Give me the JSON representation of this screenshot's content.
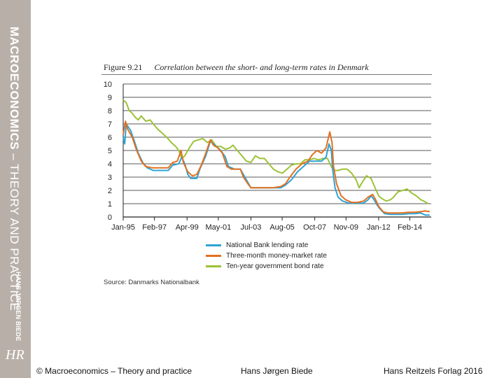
{
  "sidebar": {
    "title_bold": "MACROECONOMICS",
    "title_rest": " – THEORY AND PRACTICE",
    "author": "HANS JØRGEN BIEDE",
    "logo": "HR"
  },
  "figure": {
    "number": "Figure 9.21",
    "caption": "Correlation between the short- and long-term rates in Denmark",
    "source": "Source: Danmarks Nationalbank"
  },
  "footer": {
    "left": "© Macroeconomics – Theory and practice",
    "center": "Hans Jørgen Biede",
    "right": "Hans Reitzels Forlag 2016"
  },
  "chart_data": {
    "type": "line",
    "ylim": [
      0,
      10
    ],
    "yticks": [
      "0",
      "1",
      "2",
      "3",
      "4",
      "5",
      "6",
      "7",
      "8",
      "9",
      "10"
    ],
    "xlim": [
      1995.0,
      2015.5
    ],
    "xticks": [
      {
        "label": "Jan-95",
        "x": 1995.0
      },
      {
        "label": "Feb-97",
        "x": 1997.08
      },
      {
        "label": "Apr-99",
        "x": 1999.25
      },
      {
        "label": "May-01",
        "x": 2001.33
      },
      {
        "label": "Jul-03",
        "x": 2003.5
      },
      {
        "label": "Aug-05",
        "x": 2005.58
      },
      {
        "label": "Oct-07",
        "x": 2007.75
      },
      {
        "label": "Nov-09",
        "x": 2009.83
      },
      {
        "label": "Jan-12",
        "x": 2012.0
      },
      {
        "label": "Feb-14",
        "x": 2014.08
      }
    ],
    "grid": true,
    "legend_position": "bottom",
    "series": [
      {
        "name": "National Bank lending rate",
        "color": "#2ea3d4",
        "points": [
          [
            1995.0,
            6.0
          ],
          [
            1995.1,
            5.5
          ],
          [
            1995.2,
            7.0
          ],
          [
            1995.5,
            6.5
          ],
          [
            1995.8,
            5.5
          ],
          [
            1996.0,
            4.8
          ],
          [
            1996.3,
            4.1
          ],
          [
            1996.6,
            3.7
          ],
          [
            1997.0,
            3.5
          ],
          [
            1997.5,
            3.5
          ],
          [
            1998.0,
            3.5
          ],
          [
            1998.3,
            3.9
          ],
          [
            1998.7,
            4.0
          ],
          [
            1998.9,
            4.5
          ],
          [
            1999.1,
            4.0
          ],
          [
            1999.3,
            3.2
          ],
          [
            1999.5,
            2.9
          ],
          [
            1999.9,
            2.9
          ],
          [
            2000.1,
            3.6
          ],
          [
            2000.5,
            4.6
          ],
          [
            2000.8,
            5.7
          ],
          [
            2001.0,
            5.5
          ],
          [
            2001.5,
            5.0
          ],
          [
            2001.8,
            4.5
          ],
          [
            2002.0,
            3.8
          ],
          [
            2002.4,
            3.6
          ],
          [
            2002.8,
            3.6
          ],
          [
            2003.0,
            3.2
          ],
          [
            2003.3,
            2.6
          ],
          [
            2003.5,
            2.2
          ],
          [
            2004.0,
            2.2
          ],
          [
            2004.5,
            2.2
          ],
          [
            2005.0,
            2.2
          ],
          [
            2005.5,
            2.2
          ],
          [
            2005.8,
            2.4
          ],
          [
            2006.2,
            2.8
          ],
          [
            2006.6,
            3.4
          ],
          [
            2007.0,
            3.8
          ],
          [
            2007.4,
            4.2
          ],
          [
            2007.8,
            4.2
          ],
          [
            2008.2,
            4.2
          ],
          [
            2008.5,
            4.5
          ],
          [
            2008.7,
            5.5
          ],
          [
            2008.85,
            5.0
          ],
          [
            2008.95,
            3.5
          ],
          [
            2009.1,
            2.2
          ],
          [
            2009.3,
            1.5
          ],
          [
            2009.6,
            1.2
          ],
          [
            2010.0,
            1.05
          ],
          [
            2010.5,
            1.05
          ],
          [
            2011.0,
            1.05
          ],
          [
            2011.3,
            1.3
          ],
          [
            2011.5,
            1.6
          ],
          [
            2011.7,
            1.3
          ],
          [
            2011.9,
            0.9
          ],
          [
            2012.1,
            0.6
          ],
          [
            2012.4,
            0.25
          ],
          [
            2012.8,
            0.2
          ],
          [
            2013.2,
            0.2
          ],
          [
            2013.6,
            0.2
          ],
          [
            2014.0,
            0.25
          ],
          [
            2014.4,
            0.25
          ],
          [
            2014.8,
            0.3
          ],
          [
            2015.1,
            0.15
          ],
          [
            2015.4,
            0.15
          ]
        ]
      },
      {
        "name": "Three-month money-market rate",
        "color": "#e3701f",
        "points": [
          [
            1995.0,
            6.2
          ],
          [
            1995.15,
            7.2
          ],
          [
            1995.3,
            6.6
          ],
          [
            1995.6,
            6.0
          ],
          [
            1995.9,
            5.0
          ],
          [
            1996.2,
            4.2
          ],
          [
            1996.5,
            3.8
          ],
          [
            1996.9,
            3.7
          ],
          [
            1997.3,
            3.7
          ],
          [
            1997.7,
            3.7
          ],
          [
            1998.0,
            3.7
          ],
          [
            1998.3,
            4.1
          ],
          [
            1998.6,
            4.2
          ],
          [
            1998.85,
            5.0
          ],
          [
            1999.0,
            4.1
          ],
          [
            1999.3,
            3.4
          ],
          [
            1999.6,
            3.1
          ],
          [
            1999.9,
            3.2
          ],
          [
            2000.2,
            3.9
          ],
          [
            2000.5,
            4.8
          ],
          [
            2000.8,
            5.8
          ],
          [
            2001.0,
            5.4
          ],
          [
            2001.3,
            5.2
          ],
          [
            2001.6,
            4.8
          ],
          [
            2001.9,
            3.8
          ],
          [
            2002.2,
            3.6
          ],
          [
            2002.5,
            3.6
          ],
          [
            2002.8,
            3.6
          ],
          [
            2003.0,
            3.0
          ],
          [
            2003.3,
            2.5
          ],
          [
            2003.5,
            2.2
          ],
          [
            2004.0,
            2.2
          ],
          [
            2004.5,
            2.2
          ],
          [
            2005.0,
            2.2
          ],
          [
            2005.5,
            2.3
          ],
          [
            2005.8,
            2.5
          ],
          [
            2006.1,
            3.0
          ],
          [
            2006.5,
            3.6
          ],
          [
            2006.9,
            4.0
          ],
          [
            2007.3,
            4.2
          ],
          [
            2007.6,
            4.7
          ],
          [
            2007.9,
            5.0
          ],
          [
            2008.2,
            4.8
          ],
          [
            2008.5,
            5.2
          ],
          [
            2008.75,
            6.4
          ],
          [
            2008.9,
            5.6
          ],
          [
            2009.0,
            3.8
          ],
          [
            2009.2,
            2.5
          ],
          [
            2009.5,
            1.6
          ],
          [
            2009.8,
            1.3
          ],
          [
            2010.2,
            1.1
          ],
          [
            2010.6,
            1.1
          ],
          [
            2011.0,
            1.2
          ],
          [
            2011.3,
            1.5
          ],
          [
            2011.6,
            1.7
          ],
          [
            2011.8,
            1.3
          ],
          [
            2012.0,
            0.8
          ],
          [
            2012.3,
            0.4
          ],
          [
            2012.6,
            0.3
          ],
          [
            2013.0,
            0.3
          ],
          [
            2013.5,
            0.3
          ],
          [
            2014.0,
            0.35
          ],
          [
            2014.4,
            0.35
          ],
          [
            2014.8,
            0.4
          ],
          [
            2015.1,
            0.45
          ],
          [
            2015.4,
            0.4
          ]
        ]
      },
      {
        "name": "Ten-year government bond rate",
        "color": "#9cc236",
        "points": [
          [
            1995.0,
            8.8
          ],
          [
            1995.2,
            8.6
          ],
          [
            1995.4,
            8.0
          ],
          [
            1995.6,
            7.8
          ],
          [
            1995.8,
            7.5
          ],
          [
            1996.0,
            7.3
          ],
          [
            1996.2,
            7.6
          ],
          [
            1996.5,
            7.2
          ],
          [
            1996.8,
            7.3
          ],
          [
            1997.0,
            7.0
          ],
          [
            1997.3,
            6.6
          ],
          [
            1997.6,
            6.3
          ],
          [
            1997.9,
            6.0
          ],
          [
            1998.2,
            5.6
          ],
          [
            1998.5,
            5.3
          ],
          [
            1998.7,
            5.0
          ],
          [
            1998.9,
            4.4
          ],
          [
            1999.1,
            4.6
          ],
          [
            1999.4,
            5.2
          ],
          [
            1999.7,
            5.7
          ],
          [
            2000.0,
            5.8
          ],
          [
            2000.3,
            5.9
          ],
          [
            2000.6,
            5.6
          ],
          [
            2000.9,
            5.8
          ],
          [
            2001.2,
            5.3
          ],
          [
            2001.5,
            5.3
          ],
          [
            2001.8,
            5.1
          ],
          [
            2002.1,
            5.2
          ],
          [
            2002.3,
            5.4
          ],
          [
            2002.6,
            5.0
          ],
          [
            2002.9,
            4.6
          ],
          [
            2003.2,
            4.2
          ],
          [
            2003.5,
            4.1
          ],
          [
            2003.8,
            4.6
          ],
          [
            2004.1,
            4.4
          ],
          [
            2004.4,
            4.4
          ],
          [
            2004.7,
            4.0
          ],
          [
            2005.0,
            3.6
          ],
          [
            2005.3,
            3.4
          ],
          [
            2005.6,
            3.3
          ],
          [
            2005.9,
            3.6
          ],
          [
            2006.2,
            3.9
          ],
          [
            2006.5,
            4.0
          ],
          [
            2006.8,
            4.0
          ],
          [
            2007.1,
            4.3
          ],
          [
            2007.4,
            4.3
          ],
          [
            2007.7,
            4.4
          ],
          [
            2008.0,
            4.3
          ],
          [
            2008.3,
            4.4
          ],
          [
            2008.6,
            4.4
          ],
          [
            2008.8,
            3.9
          ],
          [
            2009.0,
            3.5
          ],
          [
            2009.3,
            3.5
          ],
          [
            2009.6,
            3.6
          ],
          [
            2009.9,
            3.6
          ],
          [
            2010.2,
            3.3
          ],
          [
            2010.5,
            2.8
          ],
          [
            2010.7,
            2.2
          ],
          [
            2010.9,
            2.6
          ],
          [
            2011.2,
            3.1
          ],
          [
            2011.5,
            2.9
          ],
          [
            2011.8,
            2.1
          ],
          [
            2012.0,
            1.6
          ],
          [
            2012.2,
            1.4
          ],
          [
            2012.5,
            1.2
          ],
          [
            2012.8,
            1.3
          ],
          [
            2013.0,
            1.5
          ],
          [
            2013.3,
            1.9
          ],
          [
            2013.6,
            2.0
          ],
          [
            2013.9,
            2.1
          ],
          [
            2014.2,
            1.8
          ],
          [
            2014.5,
            1.6
          ],
          [
            2014.8,
            1.3
          ],
          [
            2015.0,
            1.2
          ],
          [
            2015.3,
            1.0
          ]
        ]
      }
    ]
  }
}
